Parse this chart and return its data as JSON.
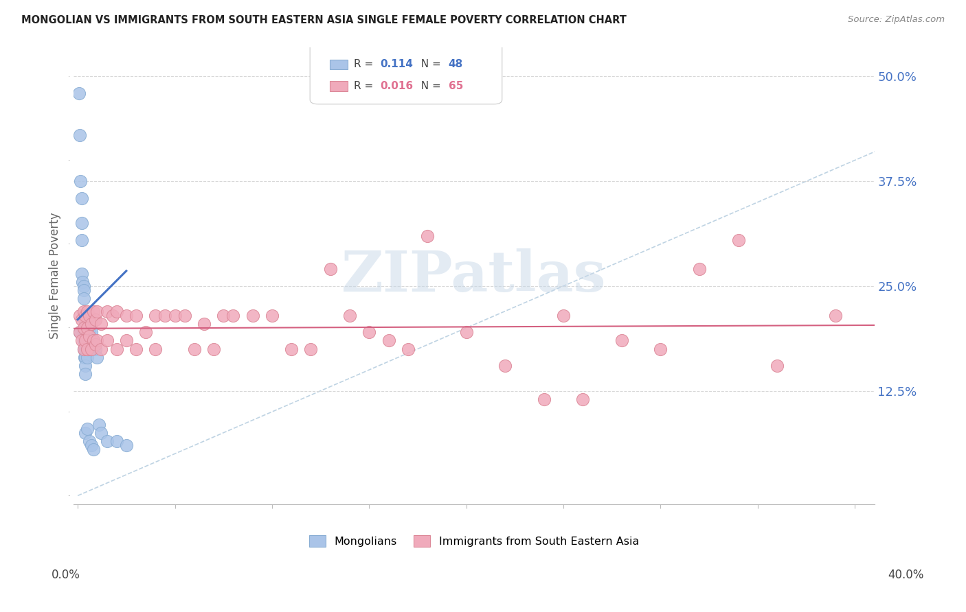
{
  "title": "MONGOLIAN VS IMMIGRANTS FROM SOUTH EASTERN ASIA SINGLE FEMALE POVERTY CORRELATION CHART",
  "source": "Source: ZipAtlas.com",
  "ylabel": "Single Female Poverty",
  "ytick_values": [
    0.125,
    0.25,
    0.375,
    0.5
  ],
  "ytick_labels": [
    "12.5%",
    "25.0%",
    "37.5%",
    "50.0%"
  ],
  "xmin": -0.002,
  "xmax": 0.41,
  "ymin": -0.01,
  "ymax": 0.535,
  "blue_scatter_color": "#aac4e8",
  "blue_edge_color": "#8aaed4",
  "pink_scatter_color": "#f0aabb",
  "pink_edge_color": "#dc8898",
  "blue_line_color": "#4472c4",
  "pink_line_color": "#d46080",
  "dashed_color": "#b8cfe0",
  "grid_color": "#d8d8d8",
  "r1_val": "0.114",
  "n1_val": "48",
  "r2_val": "0.016",
  "n2_val": "65",
  "r_color": "#4472c4",
  "n_color": "#4472c4",
  "r2_color": "#e07090",
  "n2_color": "#e07090",
  "watermark_text": "ZIPatlas",
  "watermark_color": "#c8d8e8",
  "mongolians_x": [
    0.0005,
    0.001,
    0.001,
    0.0015,
    0.002,
    0.002,
    0.002,
    0.002,
    0.0025,
    0.003,
    0.003,
    0.003,
    0.003,
    0.003,
    0.003,
    0.003,
    0.003,
    0.0035,
    0.004,
    0.004,
    0.004,
    0.004,
    0.004,
    0.004,
    0.004,
    0.004,
    0.004,
    0.004,
    0.005,
    0.005,
    0.005,
    0.005,
    0.005,
    0.005,
    0.006,
    0.006,
    0.006,
    0.007,
    0.007,
    0.008,
    0.008,
    0.009,
    0.01,
    0.011,
    0.012,
    0.015,
    0.02,
    0.025
  ],
  "mongolians_y": [
    0.48,
    0.43,
    0.195,
    0.375,
    0.355,
    0.325,
    0.305,
    0.265,
    0.255,
    0.25,
    0.245,
    0.235,
    0.215,
    0.2,
    0.195,
    0.185,
    0.175,
    0.165,
    0.205,
    0.2,
    0.195,
    0.185,
    0.18,
    0.175,
    0.165,
    0.155,
    0.145,
    0.075,
    0.21,
    0.2,
    0.185,
    0.175,
    0.165,
    0.08,
    0.195,
    0.175,
    0.065,
    0.195,
    0.06,
    0.185,
    0.055,
    0.175,
    0.165,
    0.085,
    0.075,
    0.065,
    0.065,
    0.06
  ],
  "sea_x": [
    0.001,
    0.001,
    0.002,
    0.002,
    0.003,
    0.003,
    0.003,
    0.004,
    0.004,
    0.005,
    0.005,
    0.005,
    0.006,
    0.006,
    0.007,
    0.007,
    0.008,
    0.008,
    0.009,
    0.009,
    0.01,
    0.01,
    0.012,
    0.012,
    0.015,
    0.015,
    0.018,
    0.02,
    0.02,
    0.025,
    0.025,
    0.03,
    0.03,
    0.035,
    0.04,
    0.04,
    0.045,
    0.05,
    0.055,
    0.06,
    0.065,
    0.07,
    0.075,
    0.08,
    0.09,
    0.1,
    0.11,
    0.12,
    0.13,
    0.14,
    0.15,
    0.16,
    0.17,
    0.18,
    0.2,
    0.22,
    0.24,
    0.25,
    0.26,
    0.28,
    0.3,
    0.32,
    0.34,
    0.36,
    0.39
  ],
  "sea_y": [
    0.215,
    0.195,
    0.21,
    0.185,
    0.22,
    0.2,
    0.175,
    0.215,
    0.185,
    0.22,
    0.2,
    0.175,
    0.215,
    0.19,
    0.205,
    0.175,
    0.22,
    0.185,
    0.21,
    0.18,
    0.22,
    0.185,
    0.205,
    0.175,
    0.22,
    0.185,
    0.215,
    0.22,
    0.175,
    0.215,
    0.185,
    0.215,
    0.175,
    0.195,
    0.215,
    0.175,
    0.215,
    0.215,
    0.215,
    0.175,
    0.205,
    0.175,
    0.215,
    0.215,
    0.215,
    0.215,
    0.175,
    0.175,
    0.27,
    0.215,
    0.195,
    0.185,
    0.175,
    0.31,
    0.195,
    0.155,
    0.115,
    0.215,
    0.115,
    0.185,
    0.175,
    0.27,
    0.305,
    0.155,
    0.215
  ]
}
